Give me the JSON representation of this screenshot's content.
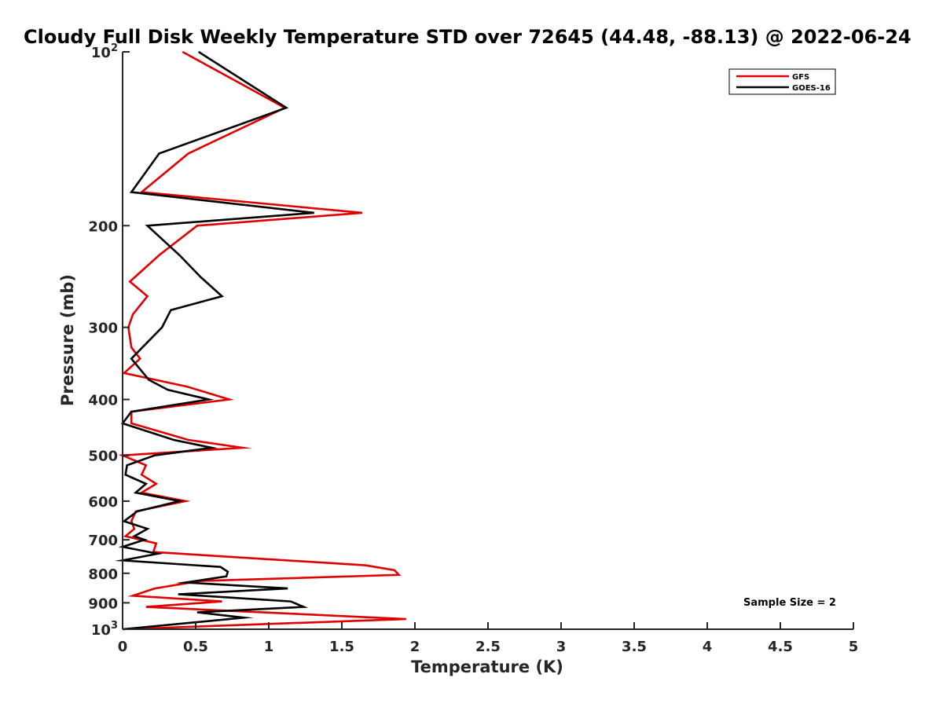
{
  "chart_data": {
    "type": "line",
    "title": "Cloudy Full Disk Weekly Temperature STD over 72645 (44.48, -88.13) @ 2022-06-24",
    "xlabel": "Temperature (K)",
    "ylabel": "Pressure (mb)",
    "xlim": [
      0,
      5
    ],
    "ylim": [
      100,
      1000
    ],
    "y_scale": "log",
    "y_reversed": true,
    "x_ticks": [
      "0",
      "0.5",
      "1",
      "1.5",
      "2",
      "2.5",
      "3",
      "3.5",
      "4",
      "4.5",
      "5"
    ],
    "y_ticks": [
      {
        "value": 100,
        "base": "10",
        "exp": "2"
      },
      {
        "value": 200,
        "label": "200"
      },
      {
        "value": 300,
        "label": "300"
      },
      {
        "value": 400,
        "label": "400"
      },
      {
        "value": 500,
        "label": "500"
      },
      {
        "value": 600,
        "label": "600"
      },
      {
        "value": 700,
        "label": "700"
      },
      {
        "value": 800,
        "label": "800"
      },
      {
        "value": 900,
        "label": "900"
      },
      {
        "value": 1000,
        "base": "10",
        "exp": "3"
      }
    ],
    "legend_position": "top-right",
    "annotation": "Sample Size = 2",
    "grid": false,
    "series": [
      {
        "name": "GFS",
        "color": "#e00000",
        "points": [
          [
            0.41,
            100
          ],
          [
            1.11,
            125
          ],
          [
            0.45,
            150
          ],
          [
            0.13,
            175
          ],
          [
            1.64,
            190
          ],
          [
            0.51,
            200
          ],
          [
            0.25,
            225
          ],
          [
            0.05,
            250
          ],
          [
            0.17,
            265
          ],
          [
            0.07,
            285
          ],
          [
            0.04,
            300
          ],
          [
            0.06,
            325
          ],
          [
            0.12,
            340
          ],
          [
            0.01,
            360
          ],
          [
            0.44,
            380
          ],
          [
            0.73,
            400
          ],
          [
            0.06,
            420
          ],
          [
            0.06,
            440
          ],
          [
            0.45,
            470
          ],
          [
            0.82,
            485
          ],
          [
            0.0,
            500
          ],
          [
            0.16,
            520
          ],
          [
            0.13,
            540
          ],
          [
            0.23,
            560
          ],
          [
            0.13,
            580
          ],
          [
            0.43,
            600
          ],
          [
            0.09,
            625
          ],
          [
            0.06,
            650
          ],
          [
            0.08,
            670
          ],
          [
            0.02,
            690
          ],
          [
            0.23,
            710
          ],
          [
            0.21,
            735
          ],
          [
            1.66,
            775
          ],
          [
            1.86,
            790
          ],
          [
            1.89,
            805
          ],
          [
            0.53,
            825
          ],
          [
            0.22,
            850
          ],
          [
            0.07,
            875
          ],
          [
            0.68,
            895
          ],
          [
            0.16,
            915
          ],
          [
            1.94,
            960
          ],
          [
            0.0,
            1000
          ]
        ]
      },
      {
        "name": "GOES-16",
        "color": "#000000",
        "points": [
          [
            0.52,
            100
          ],
          [
            1.12,
            125
          ],
          [
            0.25,
            150
          ],
          [
            0.06,
            175
          ],
          [
            1.31,
            190
          ],
          [
            0.17,
            200
          ],
          [
            0.39,
            225
          ],
          [
            0.53,
            245
          ],
          [
            0.68,
            265
          ],
          [
            0.33,
            280
          ],
          [
            0.27,
            300
          ],
          [
            0.06,
            340
          ],
          [
            0.18,
            370
          ],
          [
            0.31,
            385
          ],
          [
            0.59,
            400
          ],
          [
            0.06,
            420
          ],
          [
            0.0,
            440
          ],
          [
            0.35,
            470
          ],
          [
            0.61,
            485
          ],
          [
            0.22,
            500
          ],
          [
            0.03,
            520
          ],
          [
            0.02,
            540
          ],
          [
            0.16,
            560
          ],
          [
            0.09,
            580
          ],
          [
            0.39,
            600
          ],
          [
            0.1,
            625
          ],
          [
            0.01,
            650
          ],
          [
            0.17,
            670
          ],
          [
            0.08,
            690
          ],
          [
            0.15,
            700
          ],
          [
            0.0,
            720
          ],
          [
            0.24,
            740
          ],
          [
            0.0,
            760
          ],
          [
            0.67,
            780
          ],
          [
            0.72,
            795
          ],
          [
            0.71,
            810
          ],
          [
            0.43,
            830
          ],
          [
            1.13,
            850
          ],
          [
            0.38,
            870
          ],
          [
            1.15,
            895
          ],
          [
            1.24,
            915
          ],
          [
            0.51,
            935
          ],
          [
            0.83,
            955
          ],
          [
            0.0,
            1000
          ]
        ]
      }
    ]
  }
}
